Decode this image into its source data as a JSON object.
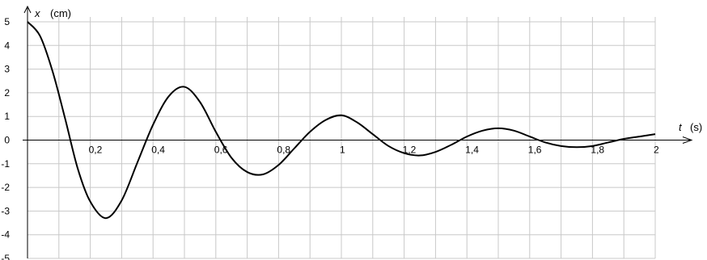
{
  "chart_data": {
    "type": "line",
    "title": "",
    "xlabel_symbol": "t",
    "xlabel_unit": "(s)",
    "ylabel_symbol": "x",
    "ylabel_unit": "(cm)",
    "xlim": [
      0,
      2
    ],
    "ylim": [
      -5,
      5
    ],
    "x_ticks": [
      0.2,
      0.4,
      0.6,
      0.8,
      1,
      1.2,
      1.4,
      1.6,
      1.8,
      2
    ],
    "x_tick_labels": [
      "0,2",
      "0,4",
      "0,6",
      "0,8",
      "1",
      "1,2",
      "1,4",
      "1,6",
      "1,8",
      "2"
    ],
    "y_ticks": [
      5,
      4,
      3,
      2,
      1,
      0,
      -1,
      -2,
      -3,
      -4,
      -5
    ],
    "y_tick_labels": [
      "5",
      "4",
      "3",
      "2",
      "1",
      "0",
      "-1",
      "-2",
      "-3",
      "-4",
      "-5"
    ],
    "grid": true,
    "grid_x_step": 0.1,
    "grid_y_step": 1,
    "grid_color": "#c8c8c8",
    "line_color": "#000000",
    "series": [
      {
        "x": [
          0,
          0.04,
          0.08,
          0.12,
          0.16,
          0.2,
          0.25,
          0.3,
          0.35,
          0.4,
          0.45,
          0.5,
          0.55,
          0.6,
          0.65,
          0.7,
          0.75,
          0.8,
          0.85,
          0.9,
          0.95,
          1,
          1.05,
          1.1,
          1.15,
          1.2,
          1.25,
          1.3,
          1.35,
          1.4,
          1.45,
          1.5,
          1.55,
          1.6,
          1.65,
          1.7,
          1.75,
          1.8,
          1.85,
          1.9,
          1.95,
          2
        ],
        "y": [
          5,
          4.4,
          2.9,
          0.9,
          -1.2,
          -2.6,
          -3.3,
          -2.55,
          -0.95,
          0.65,
          1.85,
          2.25,
          1.6,
          0.35,
          -0.75,
          -1.35,
          -1.45,
          -1.05,
          -0.35,
          0.35,
          0.85,
          1.05,
          0.75,
          0.25,
          -0.25,
          -0.55,
          -0.65,
          -0.5,
          -0.2,
          0.15,
          0.4,
          0.5,
          0.4,
          0.15,
          -0.1,
          -0.25,
          -0.3,
          -0.25,
          -0.1,
          0.05,
          0.15,
          0.25
        ]
      }
    ]
  }
}
